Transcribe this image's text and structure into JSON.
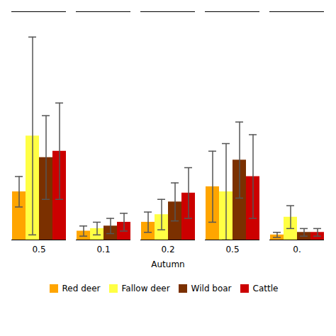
{
  "chart_data": {
    "type": "bar",
    "xlabel": "Autumn",
    "categories": [
      "0.5",
      "0.1",
      "0.2",
      "0.5",
      "0."
    ],
    "series": [
      {
        "name": "Red deer",
        "color": "#FFA500",
        "values": [
          0.38,
          0.07,
          0.14,
          0.42,
          0.04
        ],
        "errors": [
          0.12,
          0.04,
          0.08,
          0.28,
          0.02
        ]
      },
      {
        "name": "Fallow deer",
        "color": "#FFFF44",
        "values": [
          0.82,
          0.09,
          0.2,
          0.38,
          0.18
        ],
        "errors": [
          0.78,
          0.05,
          0.12,
          0.38,
          0.09
        ]
      },
      {
        "name": "Wild boar",
        "color": "#7B3000",
        "values": [
          0.65,
          0.11,
          0.3,
          0.63,
          0.06
        ],
        "errors": [
          0.33,
          0.06,
          0.15,
          0.3,
          0.03
        ]
      },
      {
        "name": "Cattle",
        "color": "#CC0000",
        "values": [
          0.7,
          0.14,
          0.37,
          0.5,
          0.06
        ],
        "errors": [
          0.38,
          0.07,
          0.2,
          0.33,
          0.03
        ]
      }
    ],
    "ylim": [
      0,
      1.8
    ],
    "tick_labels": "x",
    "grid": false,
    "legend": "bottom"
  }
}
